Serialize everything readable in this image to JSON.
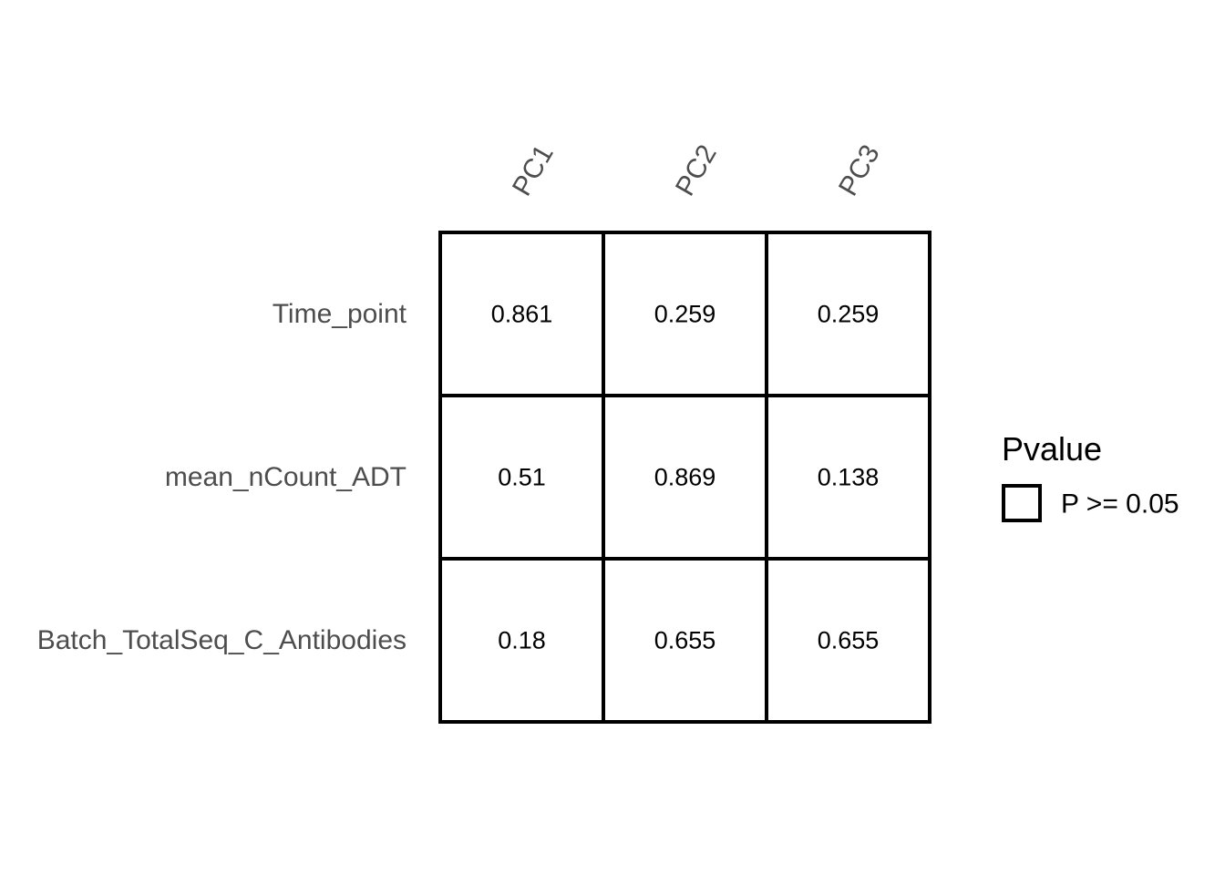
{
  "chart_data": {
    "type": "heatmap",
    "columns": [
      "PC1",
      "PC2",
      "PC3"
    ],
    "rows": [
      "Time_point",
      "mean_nCount_ADT",
      "Batch_TotalSeq_C_Antibodies"
    ],
    "values": [
      [
        "0.861",
        "0.259",
        "0.259"
      ],
      [
        "0.51",
        "0.869",
        "0.138"
      ],
      [
        "0.18",
        "0.655",
        "0.655"
      ]
    ],
    "legend": {
      "title": "Pvalue",
      "items": [
        {
          "label": "P >= 0.05",
          "fill": "#ffffff",
          "stroke": "#000000"
        }
      ]
    },
    "cell_fill": "#ffffff",
    "cell_stroke": "#000000"
  }
}
